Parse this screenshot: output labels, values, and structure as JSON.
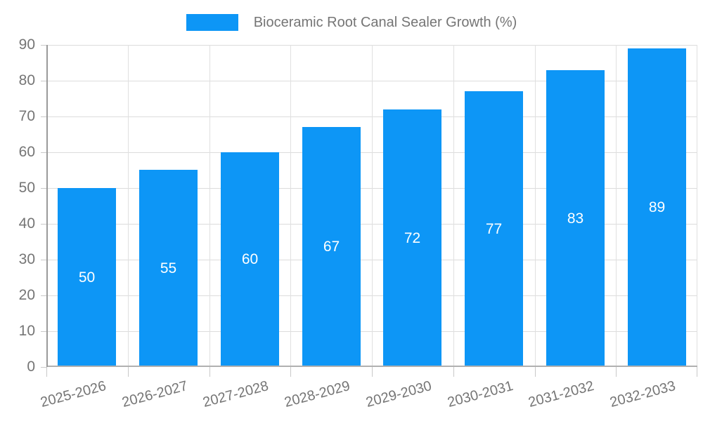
{
  "legend": {
    "label": "Bioceramic Root Canal Sealer Growth (%)"
  },
  "colors": {
    "bar": "#0d96f6",
    "axis_text": "#757575",
    "grid": "#dcdcdc",
    "axis_line": "#9a9a9a",
    "baseline": "#b0b0b0",
    "value_label": "#ffffff"
  },
  "chart_data": {
    "type": "bar",
    "title": "Bioceramic Root Canal Sealer Growth (%)",
    "categories": [
      "2025-2026",
      "2026-2027",
      "2027-2028",
      "2028-2029",
      "2029-2030",
      "2030-2031",
      "2031-2032",
      "2032-2033"
    ],
    "values": [
      50,
      55,
      60,
      67,
      72,
      77,
      83,
      89
    ],
    "xlabel": "",
    "ylabel": "",
    "ylim": [
      0,
      90
    ],
    "ytick_step": 10,
    "ytick_labels": [
      "0",
      "10",
      "20",
      "30",
      "40",
      "50",
      "60",
      "70",
      "80",
      "90"
    ],
    "grid": true,
    "legend_position": "top",
    "bar_labels_inside": true,
    "xlabel_rotation_deg": -15
  }
}
